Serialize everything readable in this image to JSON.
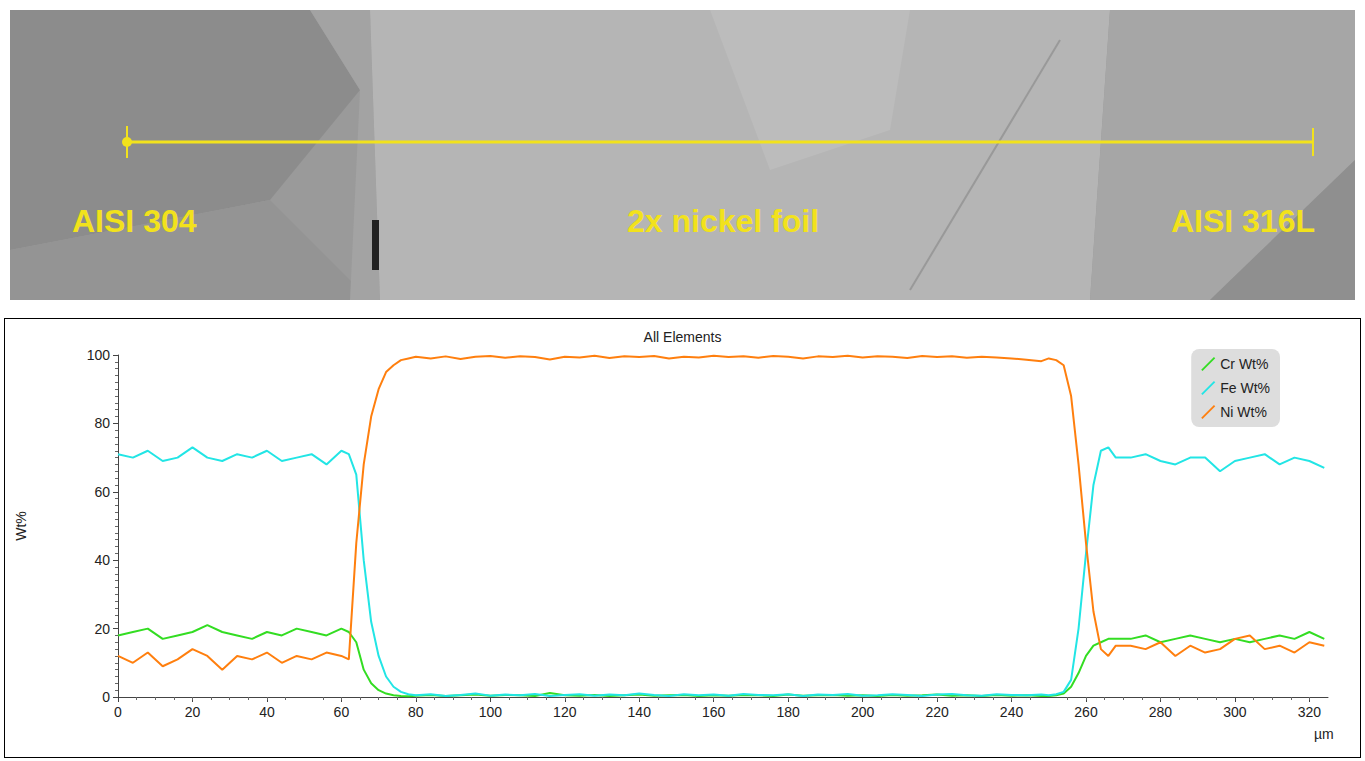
{
  "micrograph": {
    "labels": {
      "left": "AISI 304",
      "center": "2x nickel foil",
      "right": "AISI 316L"
    }
  },
  "chart_data": {
    "type": "line",
    "title": "All Elements",
    "xlabel": "µm",
    "ylabel": "Wt%",
    "x": [
      0,
      4,
      8,
      12,
      16,
      20,
      24,
      28,
      32,
      36,
      40,
      44,
      48,
      52,
      56,
      60,
      62,
      64,
      66,
      68,
      70,
      72,
      74,
      76,
      78,
      80,
      84,
      88,
      92,
      96,
      100,
      104,
      108,
      112,
      116,
      120,
      124,
      128,
      132,
      136,
      140,
      144,
      148,
      152,
      156,
      160,
      164,
      168,
      172,
      176,
      180,
      184,
      188,
      192,
      196,
      200,
      204,
      208,
      212,
      216,
      220,
      224,
      228,
      232,
      236,
      240,
      244,
      248,
      250,
      252,
      254,
      256,
      258,
      260,
      262,
      264,
      266,
      268,
      272,
      276,
      280,
      284,
      288,
      292,
      296,
      300,
      304,
      308,
      312,
      316,
      320,
      324
    ],
    "series": [
      {
        "name": "Cr Wt%",
        "color": "#33dd22",
        "values": [
          18,
          19,
          20,
          17,
          18,
          19,
          21,
          19,
          18,
          17,
          19,
          18,
          20,
          19,
          18,
          20,
          19,
          16,
          8,
          4,
          2,
          1,
          0.5,
          0.3,
          0.2,
          0.4,
          0.6,
          0.3,
          0.5,
          0.7,
          0.4,
          0.6,
          0.5,
          0.3,
          1.2,
          0.5,
          0.4,
          0.6,
          0.3,
          0.5,
          0.7,
          0.4,
          0.5,
          0.6,
          0.3,
          0.5,
          0.4,
          0.6,
          0.5,
          0.3,
          0.7,
          0.4,
          0.5,
          0.6,
          0.4,
          0.5,
          0.3,
          0.6,
          0.4,
          0.5,
          0.7,
          0.4,
          0.5,
          0.3,
          0.6,
          0.4,
          0.5,
          0.3,
          0.3,
          0.5,
          1,
          3,
          7,
          12,
          15,
          16,
          17,
          17,
          17,
          18,
          16,
          17,
          18,
          17,
          16,
          17,
          16,
          17,
          18,
          17,
          19,
          17
        ]
      },
      {
        "name": "Fe Wt%",
        "color": "#22e5e5",
        "values": [
          71,
          70,
          72,
          69,
          70,
          73,
          70,
          69,
          71,
          70,
          72,
          69,
          70,
          71,
          68,
          72,
          71,
          65,
          40,
          22,
          12,
          6,
          3,
          1.5,
          0.8,
          0.5,
          0.8,
          0.3,
          0.6,
          1.0,
          0.4,
          0.7,
          0.5,
          0.9,
          0.3,
          0.6,
          0.8,
          0.4,
          0.7,
          0.5,
          1.0,
          0.6,
          0.3,
          0.8,
          0.5,
          0.7,
          0.4,
          0.9,
          0.6,
          0.5,
          0.8,
          0.3,
          0.7,
          0.6,
          0.9,
          0.4,
          0.5,
          0.8,
          0.6,
          0.3,
          0.7,
          0.9,
          0.5,
          0.4,
          0.8,
          0.6,
          0.5,
          0.7,
          0.5,
          0.8,
          1.5,
          5,
          20,
          42,
          62,
          72,
          73,
          70,
          70,
          71,
          69,
          68,
          70,
          70,
          66,
          69,
          70,
          71,
          68,
          70,
          69,
          67
        ]
      },
      {
        "name": "Ni Wt%",
        "color": "#ff7f0e",
        "values": [
          12,
          10,
          13,
          9,
          11,
          14,
          12,
          8,
          12,
          11,
          13,
          10,
          12,
          11,
          13,
          12,
          11,
          45,
          68,
          82,
          90,
          95,
          97,
          98.5,
          99,
          99.5,
          99.0,
          99.6,
          98.8,
          99.5,
          99.7,
          99.2,
          99.6,
          99.4,
          98.7,
          99.5,
          99.3,
          99.8,
          99.1,
          99.6,
          99.4,
          99.7,
          99.0,
          99.5,
          99.3,
          99.8,
          99.4,
          99.6,
          99.2,
          99.7,
          99.5,
          99.0,
          99.6,
          99.4,
          99.8,
          99.3,
          99.6,
          99.5,
          99.1,
          99.7,
          99.4,
          99.6,
          99.2,
          99.5,
          99.3,
          99.0,
          98.6,
          98.2,
          99,
          98.5,
          97,
          88,
          68,
          45,
          25,
          14,
          12,
          15,
          15,
          14,
          16,
          12,
          15,
          13,
          14,
          17,
          18,
          14,
          15,
          13,
          16,
          15
        ]
      }
    ],
    "xlim": [
      0,
      325
    ],
    "xticks": [
      0,
      20,
      40,
      60,
      80,
      100,
      120,
      140,
      160,
      180,
      200,
      220,
      240,
      260,
      280,
      300,
      320
    ],
    "ylim": [
      0,
      100
    ],
    "yticks": [
      0,
      20,
      40,
      60,
      80,
      100
    ],
    "grid": false,
    "legend": "top-right"
  }
}
